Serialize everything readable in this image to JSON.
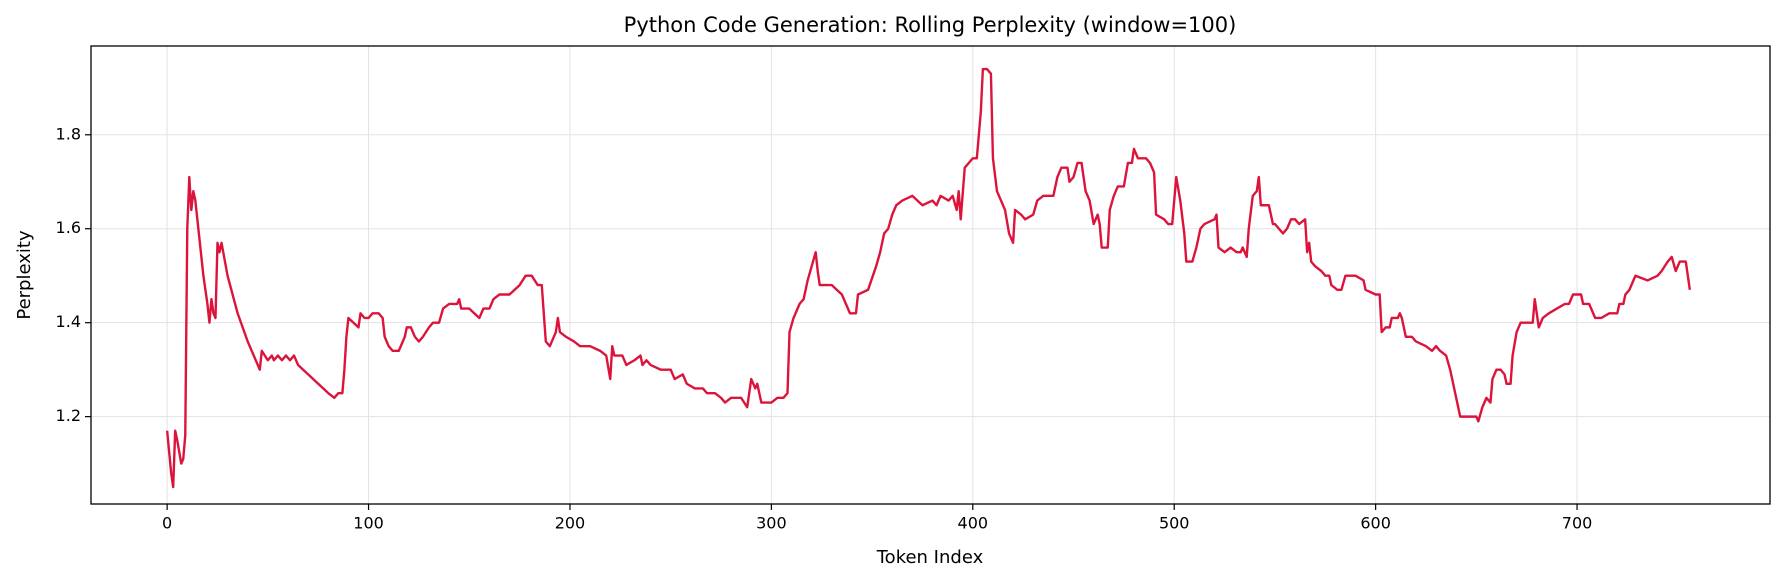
{
  "chart_data": {
    "type": "line",
    "title": "Python Code Generation: Rolling Perplexity (window=100)",
    "x_label": "Token Index",
    "y_label": "Perplexity",
    "color": "#dc143c",
    "grid": true,
    "xlim": [
      -37.8,
      795.8
    ],
    "ylim": [
      1.014,
      1.989
    ],
    "xticks": [
      0,
      100,
      200,
      300,
      400,
      500,
      600,
      700
    ],
    "yticks": [
      1.2,
      1.4,
      1.6,
      1.8
    ],
    "x": [
      0,
      2,
      3,
      4,
      5,
      7,
      8,
      9,
      10,
      11,
      12,
      13,
      14,
      16,
      18,
      20,
      21,
      22,
      23,
      24,
      25,
      26,
      27,
      30,
      35,
      40,
      45,
      46,
      47,
      50,
      52,
      53,
      55,
      57,
      59,
      61,
      63,
      65,
      70,
      75,
      80,
      83,
      85,
      87,
      88,
      89,
      90,
      95,
      96,
      98,
      100,
      102,
      105,
      107,
      108,
      110,
      112,
      115,
      118,
      119,
      121,
      123,
      125,
      127,
      130,
      132,
      135,
      137,
      140,
      144,
      145,
      146,
      150,
      155,
      157,
      160,
      162,
      165,
      170,
      175,
      178,
      181,
      184,
      186,
      188,
      190,
      193,
      194,
      195,
      198,
      202,
      205,
      210,
      215,
      218,
      220,
      221,
      222,
      226,
      228,
      232,
      235,
      236,
      238,
      240,
      245,
      250,
      252,
      256,
      258,
      262,
      266,
      268,
      272,
      275,
      277,
      280,
      285,
      288,
      290,
      292,
      293,
      295,
      300,
      303,
      306,
      308,
      309,
      311,
      314,
      316,
      318,
      320,
      322,
      323,
      324,
      330,
      335,
      337,
      339,
      342,
      343,
      348,
      352,
      354,
      356,
      358,
      360,
      362,
      365,
      370,
      375,
      380,
      382,
      384,
      388,
      390,
      392,
      393,
      394,
      396,
      398,
      400,
      402,
      404,
      405,
      407,
      409,
      410,
      412,
      414,
      416,
      418,
      420,
      421,
      424,
      426,
      430,
      432,
      435,
      440,
      442,
      444,
      447,
      448,
      450,
      452,
      454,
      456,
      458,
      460,
      462,
      463,
      464,
      467,
      468,
      470,
      472,
      475,
      477,
      479,
      480,
      482,
      486,
      488,
      490,
      491,
      495,
      497,
      499,
      501,
      503,
      505,
      506,
      509,
      511,
      513,
      515,
      520,
      521,
      522,
      525,
      528,
      531,
      533,
      534,
      536,
      537,
      539,
      541,
      542,
      543,
      547,
      549,
      550,
      552,
      554,
      556,
      558,
      560,
      562,
      565,
      566,
      567,
      568,
      570,
      573,
      575,
      577,
      578,
      581,
      583,
      585,
      590,
      594,
      595,
      600,
      602,
      603,
      605,
      607,
      608,
      611,
      612,
      613,
      615,
      618,
      620,
      625,
      628,
      630,
      632,
      635,
      637,
      639,
      641,
      642,
      645,
      650,
      651,
      653,
      655,
      657,
      658,
      660,
      662,
      664,
      665,
      667,
      668,
      670,
      672,
      676,
      678,
      679,
      681,
      683,
      686,
      690,
      694,
      696,
      698,
      700,
      702,
      703,
      706,
      709,
      712,
      716,
      720,
      721,
      723,
      724,
      726,
      728,
      729,
      735,
      740,
      742,
      745,
      747,
      749,
      751,
      754,
      756
    ],
    "values": [
      1.17,
      1.08,
      1.05,
      1.17,
      1.15,
      1.1,
      1.11,
      1.16,
      1.6,
      1.71,
      1.64,
      1.68,
      1.66,
      1.58,
      1.5,
      1.44,
      1.4,
      1.45,
      1.42,
      1.41,
      1.57,
      1.55,
      1.57,
      1.5,
      1.42,
      1.36,
      1.31,
      1.3,
      1.34,
      1.32,
      1.33,
      1.32,
      1.33,
      1.32,
      1.33,
      1.32,
      1.33,
      1.31,
      1.29,
      1.27,
      1.25,
      1.24,
      1.25,
      1.25,
      1.3,
      1.37,
      1.41,
      1.39,
      1.42,
      1.41,
      1.41,
      1.42,
      1.42,
      1.41,
      1.37,
      1.35,
      1.34,
      1.34,
      1.37,
      1.39,
      1.39,
      1.37,
      1.36,
      1.37,
      1.39,
      1.4,
      1.4,
      1.43,
      1.44,
      1.44,
      1.45,
      1.43,
      1.43,
      1.41,
      1.43,
      1.43,
      1.45,
      1.46,
      1.46,
      1.48,
      1.5,
      1.5,
      1.48,
      1.48,
      1.36,
      1.35,
      1.38,
      1.41,
      1.38,
      1.37,
      1.36,
      1.35,
      1.35,
      1.34,
      1.33,
      1.28,
      1.35,
      1.33,
      1.33,
      1.31,
      1.32,
      1.33,
      1.31,
      1.32,
      1.31,
      1.3,
      1.3,
      1.28,
      1.29,
      1.27,
      1.26,
      1.26,
      1.25,
      1.25,
      1.24,
      1.23,
      1.24,
      1.24,
      1.22,
      1.28,
      1.26,
      1.27,
      1.23,
      1.23,
      1.24,
      1.24,
      1.25,
      1.38,
      1.41,
      1.44,
      1.45,
      1.49,
      1.52,
      1.55,
      1.51,
      1.48,
      1.48,
      1.46,
      1.44,
      1.42,
      1.42,
      1.46,
      1.47,
      1.52,
      1.55,
      1.59,
      1.6,
      1.63,
      1.65,
      1.66,
      1.67,
      1.65,
      1.66,
      1.65,
      1.67,
      1.66,
      1.67,
      1.64,
      1.68,
      1.62,
      1.73,
      1.74,
      1.75,
      1.75,
      1.85,
      1.94,
      1.94,
      1.93,
      1.75,
      1.68,
      1.66,
      1.64,
      1.59,
      1.57,
      1.64,
      1.63,
      1.62,
      1.63,
      1.66,
      1.67,
      1.67,
      1.71,
      1.73,
      1.73,
      1.7,
      1.71,
      1.74,
      1.74,
      1.68,
      1.66,
      1.61,
      1.63,
      1.61,
      1.56,
      1.56,
      1.64,
      1.67,
      1.69,
      1.69,
      1.74,
      1.74,
      1.77,
      1.75,
      1.75,
      1.74,
      1.72,
      1.63,
      1.62,
      1.61,
      1.61,
      1.71,
      1.66,
      1.59,
      1.53,
      1.53,
      1.56,
      1.6,
      1.61,
      1.62,
      1.63,
      1.56,
      1.55,
      1.56,
      1.55,
      1.55,
      1.56,
      1.54,
      1.6,
      1.67,
      1.68,
      1.71,
      1.65,
      1.65,
      1.61,
      1.61,
      1.6,
      1.59,
      1.6,
      1.62,
      1.62,
      1.61,
      1.62,
      1.55,
      1.57,
      1.53,
      1.52,
      1.51,
      1.5,
      1.5,
      1.48,
      1.47,
      1.47,
      1.5,
      1.5,
      1.49,
      1.47,
      1.46,
      1.46,
      1.38,
      1.39,
      1.39,
      1.41,
      1.41,
      1.42,
      1.41,
      1.37,
      1.37,
      1.36,
      1.35,
      1.34,
      1.35,
      1.34,
      1.33,
      1.3,
      1.26,
      1.22,
      1.2,
      1.2,
      1.2,
      1.19,
      1.22,
      1.24,
      1.23,
      1.28,
      1.3,
      1.3,
      1.29,
      1.27,
      1.27,
      1.33,
      1.38,
      1.4,
      1.4,
      1.4,
      1.45,
      1.39,
      1.41,
      1.42,
      1.43,
      1.44,
      1.44,
      1.46,
      1.46,
      1.46,
      1.44,
      1.44,
      1.41,
      1.41,
      1.42,
      1.42,
      1.44,
      1.44,
      1.46,
      1.47,
      1.49,
      1.5,
      1.49,
      1.5,
      1.51,
      1.53,
      1.54,
      1.51,
      1.53,
      1.53,
      1.47
    ]
  }
}
